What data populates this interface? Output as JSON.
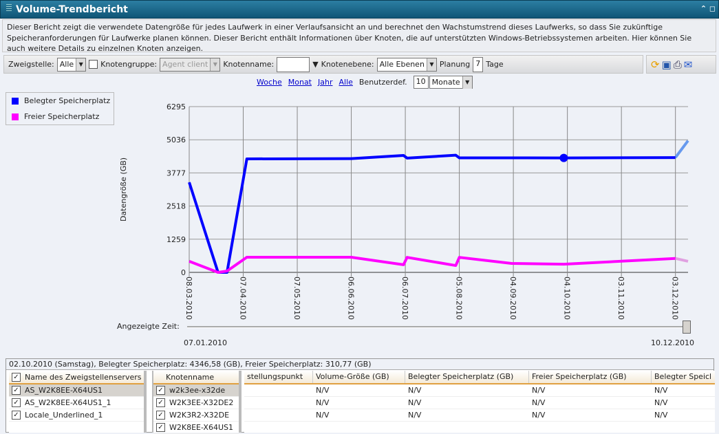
{
  "window": {
    "title": "Volume-Trendbericht",
    "controls": "⌃ ◻"
  },
  "description": "Dieser Bericht zeigt die verwendete Datengröße für jedes Laufwerk in einer Verlaufsansicht an und berechnet den Wachstumstrend dieses Laufwerks, so dass Sie zukünftige Speicheranforderungen für Laufwerke planen können. Dieser Bericht enthält Informationen über Knoten, die auf unterstützten Windows-Betriebssystemen arbeiten. Hier können Sie auch weitere Details zu einzelnen Knoten anzeigen.",
  "filters": {
    "zweigstelle_label": "Zweigstelle:",
    "zweigstelle_value": "Alle",
    "knotengruppe_label": "Knotengruppe:",
    "knotengruppe_value": "Agent client",
    "knotenname_label": "Knotenname:",
    "knotenname_value": "",
    "knotenebene_label": "Knotenebene:",
    "knotenebene_value": "Alle Ebenen",
    "planung_label": "Planung",
    "planung_value": "7",
    "tage_label": "Tage"
  },
  "tools": [
    "refresh-icon",
    "save-icon",
    "print-icon",
    "email-icon"
  ],
  "range": {
    "woche": "Woche",
    "monat": "Monat",
    "jahr": "Jahr",
    "alle": "Alle",
    "benutzerdef_label": "Benutzerdef.",
    "benutzerdef_value": "10",
    "unit": "Monate"
  },
  "chart_data": {
    "type": "line",
    "ylabel": "Datengröße (GB)",
    "yticks": [
      0,
      1259,
      2518,
      3777,
      5036,
      6295
    ],
    "ylim": [
      0,
      6295
    ],
    "xlim": [
      "08.03.2010",
      "10.12.2010"
    ],
    "xticks": [
      "08.03.2010",
      "07.04.2010",
      "07.05.2010",
      "06.06.2010",
      "06.07.2010",
      "05.08.2010",
      "04.09.2010",
      "04.10.2010",
      "03.11.2010",
      "03.12.2010"
    ],
    "grid": true,
    "legend_position": "top-left",
    "series": [
      {
        "name": "Belegter Speicherplatz",
        "color": "#0000ff",
        "trend_color": "#6699ee",
        "points": [
          [
            "08.03.2010",
            3420
          ],
          [
            "24.03.2010",
            0
          ],
          [
            "29.03.2010",
            0
          ],
          [
            "09.04.2010",
            4310
          ],
          [
            "06.06.2010",
            4320
          ],
          [
            "05.07.2010",
            4440
          ],
          [
            "07.07.2010",
            4340
          ],
          [
            "03.08.2010",
            4450
          ],
          [
            "05.08.2010",
            4350
          ],
          [
            "02.10.2010",
            4346.58
          ],
          [
            "03.12.2010",
            4360
          ]
        ],
        "trend": [
          [
            "03.12.2010",
            4360
          ],
          [
            "10.12.2010",
            5000
          ]
        ],
        "highlight": [
          "02.10.2010",
          4346.58
        ]
      },
      {
        "name": "Freier Speicherplatz",
        "color": "#ff00ff",
        "trend_color": "#e0a0e0",
        "points": [
          [
            "08.03.2010",
            420
          ],
          [
            "24.03.2010",
            0
          ],
          [
            "29.03.2010",
            50
          ],
          [
            "09.04.2010",
            575
          ],
          [
            "06.06.2010",
            575
          ],
          [
            "05.07.2010",
            290
          ],
          [
            "07.07.2010",
            570
          ],
          [
            "03.08.2010",
            260
          ],
          [
            "05.08.2010",
            570
          ],
          [
            "03.09.2010",
            340
          ],
          [
            "02.10.2010",
            310.77
          ],
          [
            "03.12.2010",
            530
          ]
        ],
        "trend": [
          [
            "03.12.2010",
            530
          ],
          [
            "10.12.2010",
            420
          ]
        ]
      }
    ]
  },
  "time": {
    "label": "Angezeigte Zeit:",
    "start": "07.01.2010",
    "end": "10.12.2010",
    "position": 1.0
  },
  "status": "02.10.2010 (Samstag), Belegter Speicherplatz: 4346,58 (GB), Freier Speicherplatz: 310,77 (GB)",
  "servers": {
    "header": "Name des Zweigstellenservers",
    "rows": [
      "AS_W2K8EE-X64US1",
      "AS_W2K8EE-X64US1_1",
      "Locale_Underlined_1"
    ]
  },
  "nodes": {
    "header": "Knotenname",
    "rows": [
      "w2k3ee-x32de",
      "W2K3EE-X32DE2",
      "W2K3R2-X32DE",
      "W2K8EE-X64US1"
    ]
  },
  "details": {
    "headers": [
      "stellungspunkt",
      "Volume-Größe (GB)",
      "Belegter Speicherplatz (GB)",
      "Freier Speicherplatz (GB)",
      "Belegter Speicl"
    ],
    "rows": [
      [
        "",
        "N/V",
        "N/V",
        "N/V",
        "N/V"
      ],
      [
        "",
        "N/V",
        "N/V",
        "N/V",
        "N/V"
      ],
      [
        "",
        "N/V",
        "N/V",
        "N/V",
        "N/V"
      ]
    ]
  }
}
